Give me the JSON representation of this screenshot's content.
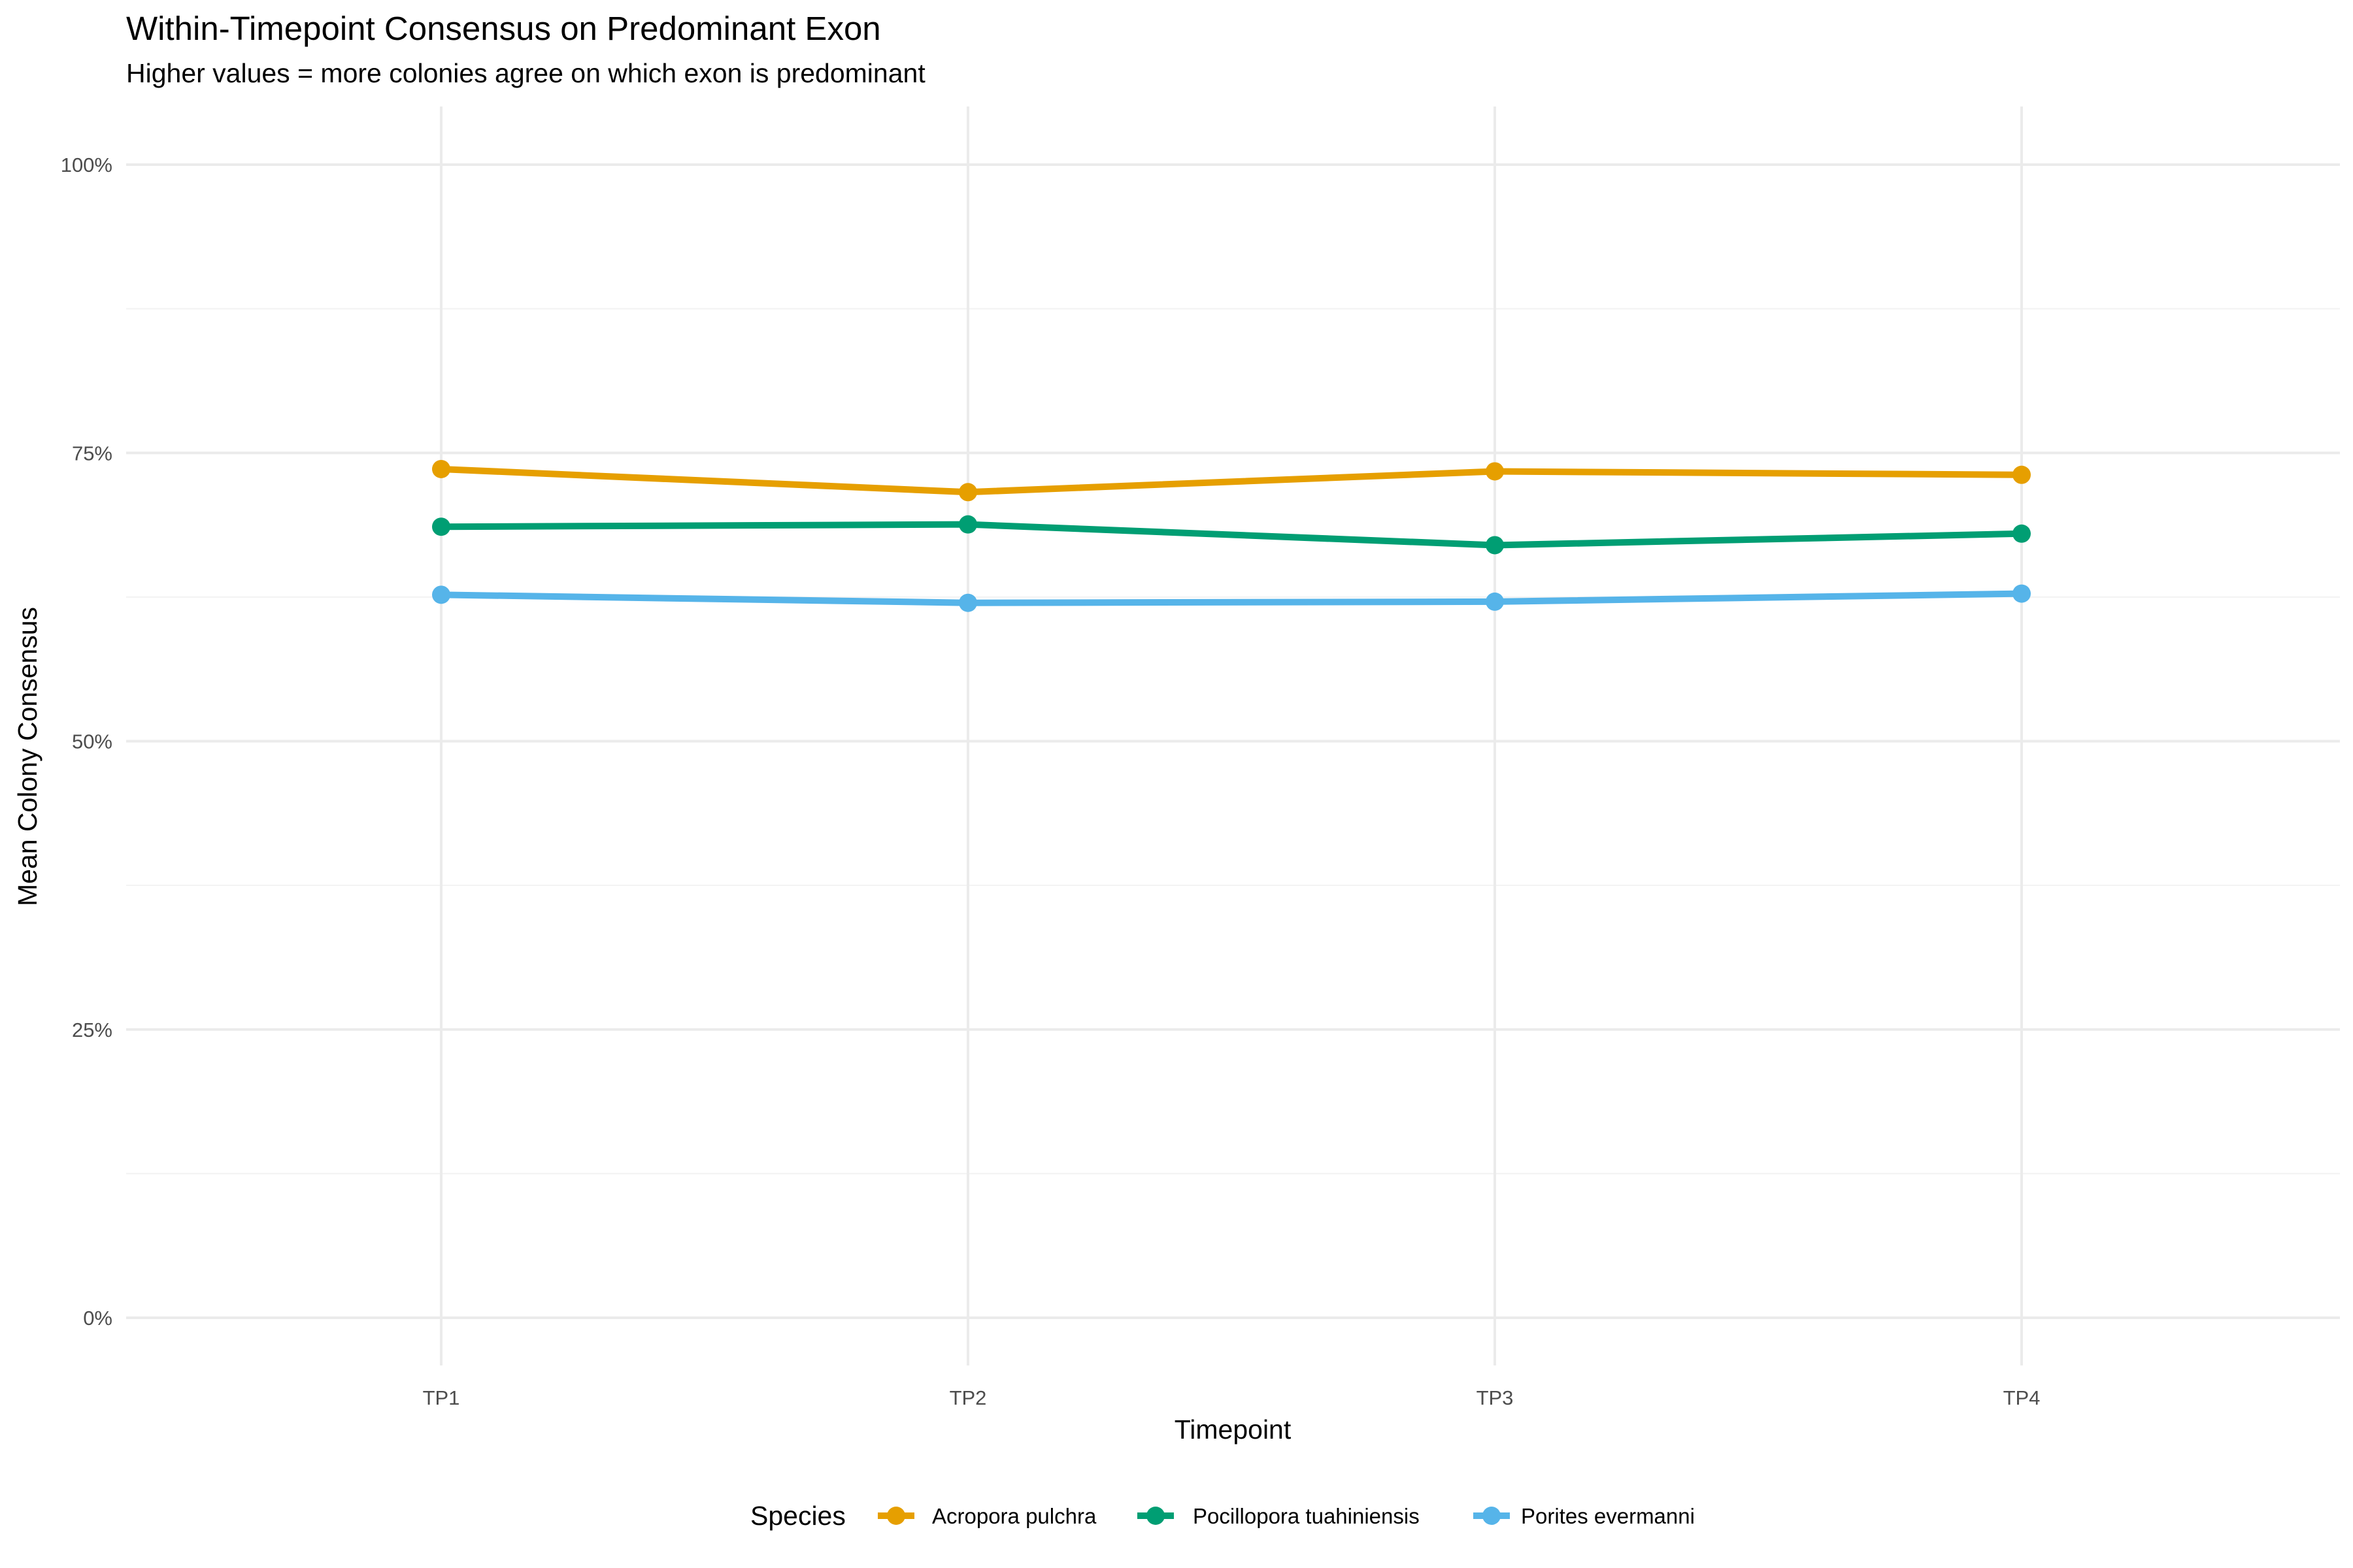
{
  "chart_data": {
    "type": "line",
    "title": "Within-Timepoint Consensus on Predominant Exon",
    "subtitle": "Higher values = more colonies agree on which exon is predominant",
    "xlabel": "Timepoint",
    "ylabel": "Mean Colony Consensus",
    "categories": [
      "TP1",
      "TP2",
      "TP3",
      "TP4"
    ],
    "ylim": [
      0,
      1
    ],
    "yticks": [
      0,
      0.25,
      0.5,
      0.75,
      1.0
    ],
    "ytick_labels": [
      "0%",
      "25%",
      "50%",
      "75%",
      "100%"
    ],
    "grid": true,
    "legend": {
      "title": "Species",
      "position": "bottom"
    },
    "series": [
      {
        "name": "Acropora pulchra",
        "color": "#E69F00",
        "values": [
          0.736,
          0.716,
          0.734,
          0.731
        ]
      },
      {
        "name": "Pocillopora tuahiniensis",
        "color": "#009E73",
        "values": [
          0.686,
          0.688,
          0.67,
          0.68
        ]
      },
      {
        "name": "Porites evermanni",
        "color": "#56B4E9",
        "values": [
          0.627,
          0.62,
          0.621,
          0.628
        ]
      }
    ]
  }
}
